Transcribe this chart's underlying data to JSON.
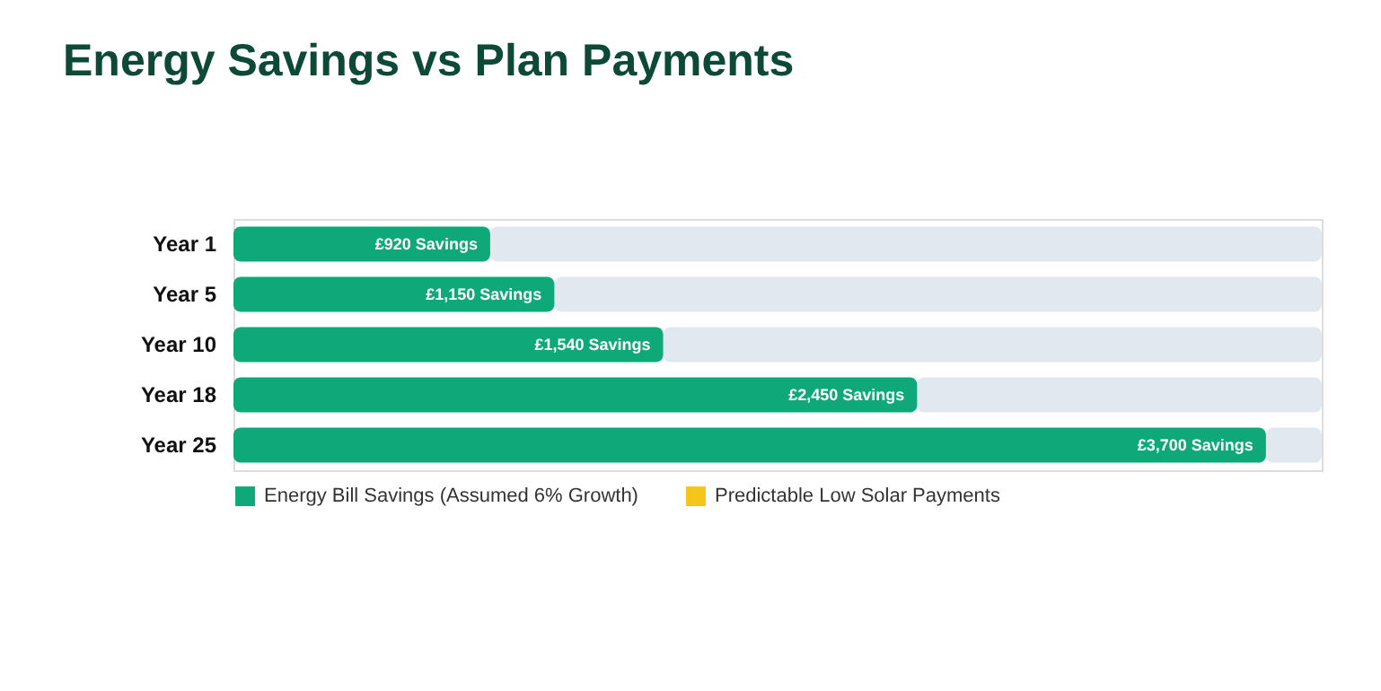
{
  "chart_data": {
    "type": "bar",
    "orientation": "horizontal",
    "stacked": true,
    "title": "Energy Savings vs Plan Payments",
    "categories": [
      "Year 1",
      "Year 5",
      "Year 10",
      "Year 18",
      "Year 25"
    ],
    "series": [
      {
        "name": "Energy Bill Savings (Assumed 6% Growth)",
        "color": "#0fa878",
        "values": [
          920,
          1150,
          1540,
          2450,
          3700
        ],
        "value_labels": [
          "£920 Savings",
          "£1,150 Savings",
          "£1,540 Savings",
          "£2,450 Savings",
          "£3,700 Savings"
        ]
      },
      {
        "color": "#e2e8f0",
        "values": [
          2980,
          2750,
          2360,
          1450,
          200
        ]
      },
      {
        "name": "Predictable Low Solar Payments",
        "color": "#f5c518",
        "values": [
          null,
          null,
          null,
          null,
          null
        ]
      }
    ],
    "xlim": [
      0,
      3900
    ],
    "tick_labels": "y",
    "grid": false,
    "legend": "bottom"
  }
}
